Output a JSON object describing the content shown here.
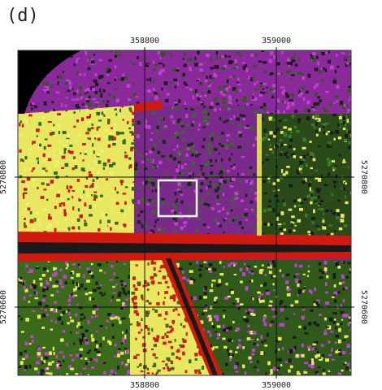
{
  "panel_label": "(d)",
  "top_labels": [
    "358800",
    "359000"
  ],
  "bottom_labels": [
    "358800",
    "359000"
  ],
  "right_labels": [
    "5270800",
    "5270600"
  ],
  "left_labels": [
    "5270800",
    "5270600"
  ]
}
